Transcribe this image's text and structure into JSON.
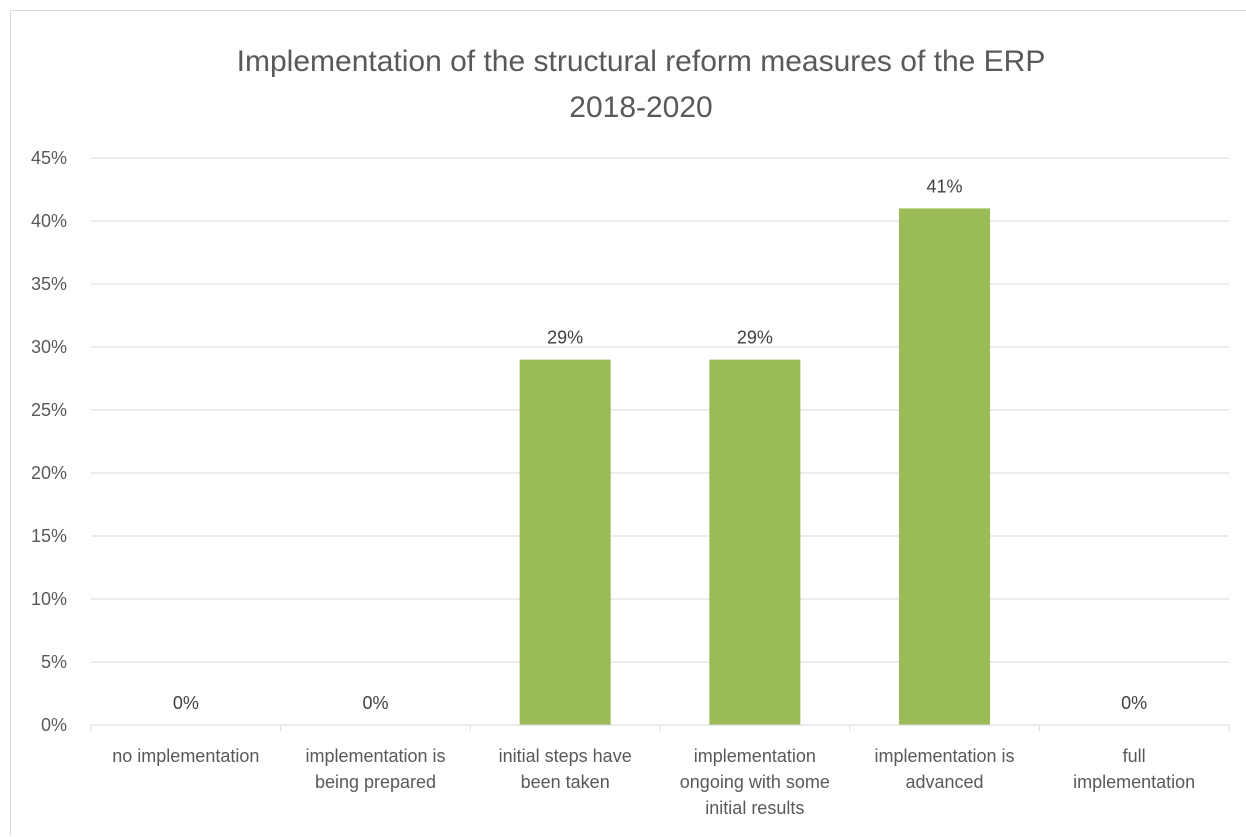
{
  "chart_data": {
    "type": "bar",
    "title_lines": [
      "Implementation of the structural reform measures of the ERP",
      "2018-2020"
    ],
    "categories": [
      [
        "no implementation"
      ],
      [
        "implementation is",
        "being prepared"
      ],
      [
        "initial steps have",
        "been taken"
      ],
      [
        "implementation",
        "ongoing with some",
        "initial results"
      ],
      [
        "implementation is",
        "advanced"
      ],
      [
        "full",
        "implementation"
      ]
    ],
    "values": [
      0,
      0,
      29,
      29,
      41,
      0
    ],
    "data_labels": [
      "0%",
      "0%",
      "29%",
      "29%",
      "41%",
      "0%"
    ],
    "y_ticks": [
      "0%",
      "5%",
      "10%",
      "15%",
      "20%",
      "25%",
      "30%",
      "35%",
      "40%",
      "45%"
    ],
    "ylim": [
      0,
      45
    ],
    "grid": true,
    "bar_color": "#9BBB59",
    "grid_color": "#d9d9d9",
    "text_color": "#595959"
  }
}
